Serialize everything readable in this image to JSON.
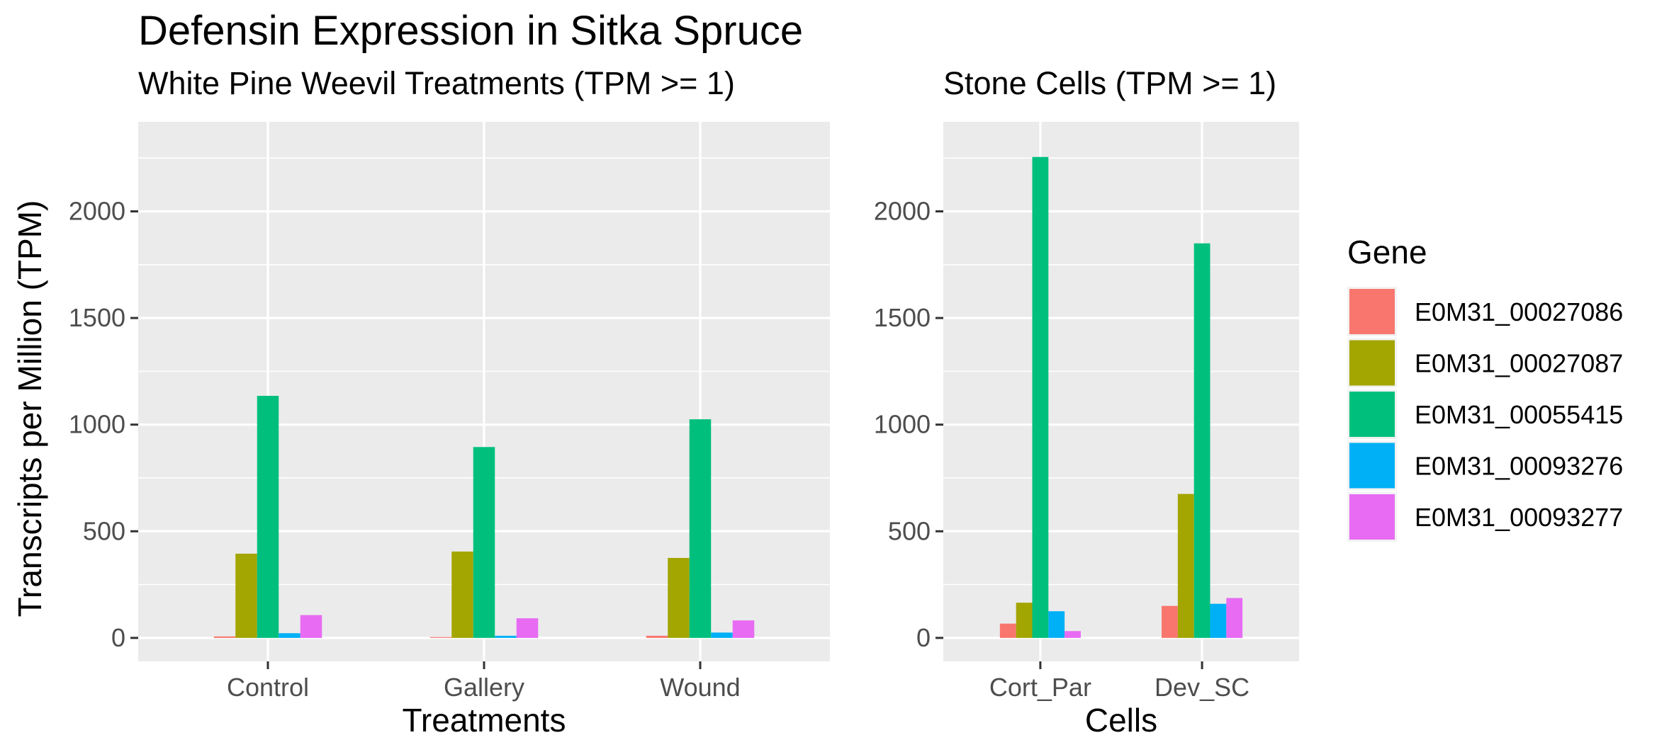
{
  "chart_data": {
    "type": "bar",
    "title": "Defensin Expression in Sitka Spruce",
    "ylabel": "Transcripts per Million (TPM)",
    "legend": {
      "title": "Gene",
      "placement": "right",
      "entries": [
        {
          "name": "E0M31_00027086",
          "color": "#F8766D"
        },
        {
          "name": "E0M31_00027087",
          "color": "#A3A500"
        },
        {
          "name": "E0M31_00055415",
          "color": "#00BF7D"
        },
        {
          "name": "E0M31_00093276",
          "color": "#00B0F6"
        },
        {
          "name": "E0M31_00093277",
          "color": "#E76BF3"
        }
      ]
    },
    "panels": [
      {
        "subtitle": "White Pine Weevil Treatments (TPM >= 1)",
        "xlabel": "Treatments",
        "categories": [
          "Control",
          "Gallery",
          "Wound"
        ],
        "ylim": [
          -110,
          2420
        ],
        "yticks": [
          0,
          500,
          1000,
          1500,
          2000
        ],
        "grid": true,
        "series": [
          {
            "name": "E0M31_00027086",
            "values": [
              7,
              4,
              10
            ]
          },
          {
            "name": "E0M31_00027087",
            "values": [
              395,
              405,
              375
            ]
          },
          {
            "name": "E0M31_00055415",
            "values": [
              1135,
              895,
              1025
            ]
          },
          {
            "name": "E0M31_00093276",
            "values": [
              22,
              10,
              25
            ]
          },
          {
            "name": "E0M31_00093277",
            "values": [
              107,
              92,
              82
            ]
          }
        ]
      },
      {
        "subtitle": "Stone Cells (TPM >= 1)",
        "xlabel": "Cells",
        "categories": [
          "Cort_Par",
          "Dev_SC"
        ],
        "ylim": [
          -110,
          2420
        ],
        "yticks": [
          0,
          500,
          1000,
          1500,
          2000
        ],
        "grid": true,
        "series": [
          {
            "name": "E0M31_00027086",
            "values": [
              67,
              150
            ]
          },
          {
            "name": "E0M31_00027087",
            "values": [
              165,
              675
            ]
          },
          {
            "name": "E0M31_00055415",
            "values": [
              2255,
              1850
            ]
          },
          {
            "name": "E0M31_00093276",
            "values": [
              125,
              160
            ]
          },
          {
            "name": "E0M31_00093277",
            "values": [
              32,
              187
            ]
          }
        ]
      }
    ]
  }
}
